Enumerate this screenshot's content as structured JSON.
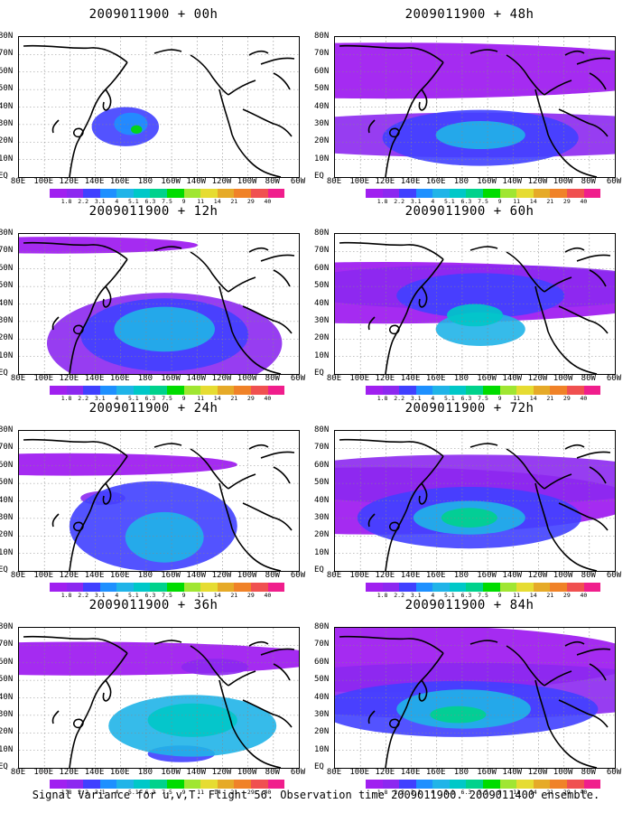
{
  "caption": "Signal Variance for u,v,T. Flight 56. Observation time 2009011900. 2009011400 ensemble.",
  "lat_labels": [
    "80N",
    "70N",
    "60N",
    "50N",
    "40N",
    "30N",
    "20N",
    "10N",
    "EQ"
  ],
  "lon_labels": [
    "80E",
    "100E",
    "120E",
    "140E",
    "160E",
    "180",
    "160W",
    "140W",
    "120W",
    "100W",
    "80W",
    "60W"
  ],
  "colorbar": {
    "labels": [
      "1.8",
      "2.2",
      "3.1",
      "4",
      "5.1",
      "6.3",
      "7.5",
      "9",
      "11",
      "14",
      "21",
      "29",
      "40"
    ],
    "colors": [
      "#a020f0",
      "#8c28f0",
      "#4040ff",
      "#1e90ff",
      "#20b4e8",
      "#00c8c8",
      "#00d28c",
      "#00dc00",
      "#a0e632",
      "#e6dc32",
      "#e6aa28",
      "#f08228",
      "#f05050",
      "#f01e8c"
    ]
  },
  "panels": [
    {
      "title": "2009011900 + 00h",
      "lead_hours": 0
    },
    {
      "title": "2009011900 + 12h",
      "lead_hours": 12
    },
    {
      "title": "2009011900 + 24h",
      "lead_hours": 24
    },
    {
      "title": "2009011900 + 36h",
      "lead_hours": 36
    },
    {
      "title": "2009011900 + 48h",
      "lead_hours": 48
    },
    {
      "title": "2009011900 + 60h",
      "lead_hours": 60
    },
    {
      "title": "2009011900 + 72h",
      "lead_hours": 72
    },
    {
      "title": "2009011900 + 84h",
      "lead_hours": 84
    }
  ]
}
